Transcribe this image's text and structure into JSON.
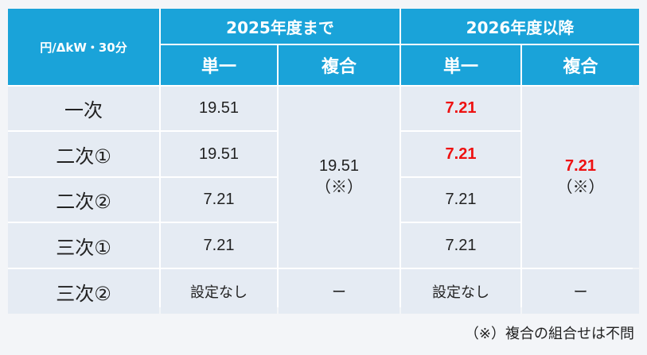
{
  "table": {
    "corner_label": "円/ΔkW・30分",
    "period_headers": [
      "2025年度まで",
      "2026年度以降"
    ],
    "sub_headers": [
      "単一",
      "複合",
      "単一",
      "複合"
    ],
    "rows": [
      {
        "label": "一次",
        "y2025_single": "19.51",
        "y2026_single": "7.21"
      },
      {
        "label": "二次①",
        "y2025_single": "19.51",
        "y2026_single": "7.21"
      },
      {
        "label": "二次②",
        "y2025_single": "7.21",
        "y2026_single": "7.21"
      },
      {
        "label": "三次①",
        "y2025_single": "7.21",
        "y2026_single": "7.21"
      },
      {
        "label": "三次②",
        "y2025_single": "設定なし",
        "y2026_single": "設定なし"
      }
    ],
    "y2025_combined_value": "19.51",
    "y2026_combined_value": "7.21",
    "combined_mark": "（※）",
    "sanji2_y2025_combined": "ー",
    "sanji2_y2026_combined": "ー"
  },
  "highlight_color": "#ee1111",
  "header_color": "#1aa3d9",
  "footnote": "（※）複合の組合せは不問"
}
